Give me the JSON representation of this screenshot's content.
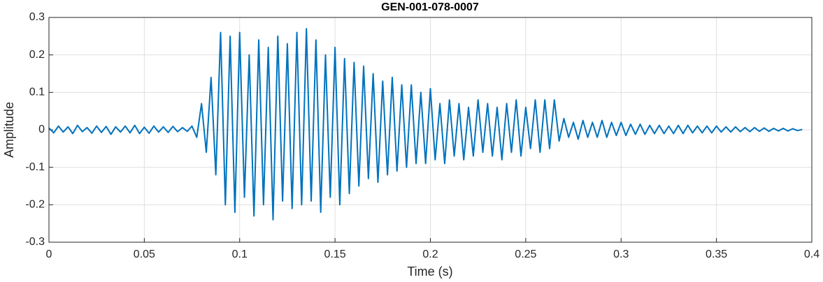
{
  "chart_data": {
    "type": "line",
    "title": "GEN-001-078-0007",
    "xlabel": "Time (s)",
    "ylabel": "Amplitude",
    "color": "#0072BD",
    "grid": true,
    "xlim": [
      0,
      0.4
    ],
    "ylim": [
      -0.3,
      0.3
    ],
    "xticks": [
      0,
      0.05,
      0.1,
      0.15,
      0.2,
      0.25,
      0.3,
      0.35,
      0.4
    ],
    "yticks": [
      -0.3,
      -0.2,
      -0.1,
      0,
      0.1,
      0.2,
      0.3
    ],
    "x": [
      0,
      0.0025,
      0.005,
      0.0075,
      0.01,
      0.0125,
      0.015,
      0.0175,
      0.02,
      0.0225,
      0.025,
      0.0275,
      0.03,
      0.0325,
      0.035,
      0.0375,
      0.04,
      0.0425,
      0.045,
      0.0475,
      0.05,
      0.0525,
      0.055,
      0.0575,
      0.06,
      0.0625,
      0.065,
      0.0675,
      0.07,
      0.0725,
      0.075,
      0.0775,
      0.08,
      0.0825,
      0.085,
      0.0875,
      0.09,
      0.0925,
      0.095,
      0.0975,
      0.1,
      0.1025,
      0.105,
      0.1075,
      0.11,
      0.1125,
      0.115,
      0.1175,
      0.12,
      0.1225,
      0.125,
      0.1275,
      0.13,
      0.1325,
      0.135,
      0.1375,
      0.14,
      0.1425,
      0.145,
      0.1475,
      0.15,
      0.1525,
      0.155,
      0.1575,
      0.16,
      0.1625,
      0.165,
      0.1675,
      0.17,
      0.1725,
      0.175,
      0.1775,
      0.18,
      0.1825,
      0.185,
      0.1875,
      0.19,
      0.1925,
      0.195,
      0.1975,
      0.2,
      0.2025,
      0.205,
      0.2075,
      0.21,
      0.2125,
      0.215,
      0.2175,
      0.22,
      0.2225,
      0.225,
      0.2275,
      0.23,
      0.2325,
      0.235,
      0.2375,
      0.24,
      0.2425,
      0.245,
      0.2475,
      0.25,
      0.2525,
      0.255,
      0.2575,
      0.26,
      0.2625,
      0.265,
      0.2675,
      0.27,
      0.2725,
      0.275,
      0.2775,
      0.28,
      0.2825,
      0.285,
      0.2875,
      0.29,
      0.2925,
      0.295,
      0.2975,
      0.3,
      0.3025,
      0.305,
      0.3075,
      0.31,
      0.3125,
      0.315,
      0.3175,
      0.32,
      0.3225,
      0.325,
      0.3275,
      0.33,
      0.3325,
      0.335,
      0.3375,
      0.34,
      0.3425,
      0.345,
      0.3475,
      0.35,
      0.3525,
      0.355,
      0.3575,
      0.36,
      0.3625,
      0.365,
      0.3675,
      0.37,
      0.3725,
      0.375,
      0.3775,
      0.38,
      0.3825,
      0.385,
      0.3875,
      0.39,
      0.3925,
      0.395
    ],
    "values": [
      0.005,
      -0.008,
      0.01,
      -0.006,
      0.008,
      -0.01,
      0.012,
      -0.005,
      0.006,
      -0.009,
      0.01,
      -0.007,
      0.009,
      -0.012,
      0.008,
      -0.006,
      0.01,
      -0.008,
      0.012,
      -0.01,
      0.007,
      -0.009,
      0.01,
      -0.006,
      0.008,
      -0.007,
      0.009,
      -0.005,
      0.006,
      -0.004,
      0.01,
      -0.02,
      0.07,
      -0.06,
      0.14,
      -0.12,
      0.26,
      -0.2,
      0.25,
      -0.22,
      0.26,
      -0.18,
      0.2,
      -0.23,
      0.24,
      -0.2,
      0.22,
      -0.24,
      0.25,
      -0.19,
      0.23,
      -0.21,
      0.26,
      -0.2,
      0.27,
      -0.19,
      0.24,
      -0.22,
      0.2,
      -0.18,
      0.22,
      -0.2,
      0.19,
      -0.17,
      0.18,
      -0.15,
      0.17,
      -0.13,
      0.15,
      -0.14,
      0.13,
      -0.12,
      0.14,
      -0.11,
      0.12,
      -0.1,
      0.12,
      -0.09,
      0.1,
      -0.09,
      0.11,
      -0.08,
      0.07,
      -0.09,
      0.08,
      -0.07,
      0.07,
      -0.08,
      0.06,
      -0.07,
      0.08,
      -0.06,
      0.07,
      -0.07,
      0.06,
      -0.08,
      0.07,
      -0.06,
      0.08,
      -0.07,
      0.06,
      -0.05,
      0.08,
      -0.06,
      0.08,
      -0.05,
      0.08,
      -0.03,
      0.03,
      -0.02,
      0.02,
      -0.025,
      0.025,
      -0.02,
      0.02,
      -0.02,
      0.025,
      -0.02,
      0.02,
      -0.015,
      0.02,
      -0.015,
      0.015,
      -0.012,
      0.015,
      -0.012,
      0.012,
      -0.01,
      0.012,
      -0.01,
      0.01,
      -0.01,
      0.012,
      -0.01,
      0.012,
      -0.008,
      0.01,
      -0.008,
      0.01,
      -0.008,
      0.01,
      -0.006,
      0.008,
      -0.006,
      0.008,
      -0.005,
      0.006,
      -0.005,
      0.006,
      -0.004,
      0.005,
      -0.004,
      0.004,
      -0.003,
      0.004,
      -0.003,
      0.003,
      -0.002,
      0.001
    ]
  }
}
